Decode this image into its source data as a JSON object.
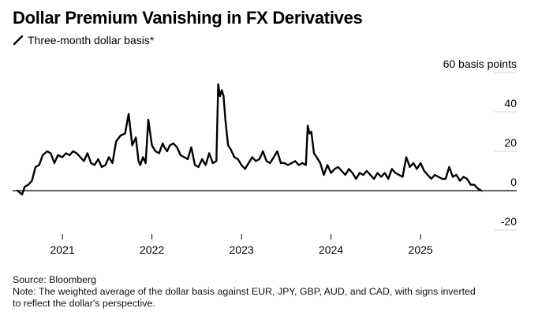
{
  "title": "Dollar Premium Vanishing in FX Derivatives",
  "colors": {
    "line": "#000000",
    "grid": "#d9d9d9",
    "zero": "#000000",
    "background": "#ffffff"
  },
  "footer": {
    "source": "Source: Bloomberg",
    "note_line1": "Note: The weighted average of the dollar basis against EUR, JPY, GBP, AUD, and CAD, with signs inverted",
    "note_line2": "to reflect the dollar's perspective."
  },
  "chart_data": {
    "type": "line",
    "title": "",
    "xlabel": "",
    "ylabel": "60 basis points",
    "unit": "basis points",
    "ylim": [
      -20,
      60
    ],
    "y_ticks": [
      {
        "value": 60,
        "label": "60 basis points"
      },
      {
        "value": 40,
        "label": "40"
      },
      {
        "value": 20,
        "label": "20"
      },
      {
        "value": 0,
        "label": "0"
      },
      {
        "value": -20,
        "label": "-20"
      }
    ],
    "x_ticks": [
      "2021",
      "2022",
      "2023",
      "2024",
      "2025"
    ],
    "xlim": [
      2020.55,
      2025.88
    ],
    "grid": "horizontal",
    "legend": "top-left",
    "series": [
      {
        "name": "Three-month dollar basis*",
        "x": [
          2020.5,
          2020.55,
          2020.58,
          2020.62,
          2020.66,
          2020.7,
          2020.74,
          2020.78,
          2020.83,
          2020.87,
          2020.91,
          2020.95,
          2021.0,
          2021.04,
          2021.08,
          2021.12,
          2021.16,
          2021.2,
          2021.24,
          2021.28,
          2021.32,
          2021.36,
          2021.4,
          2021.44,
          2021.48,
          2021.52,
          2021.56,
          2021.6,
          2021.65,
          2021.7,
          2021.74,
          2021.78,
          2021.82,
          2021.85,
          2021.87,
          2021.9,
          2021.93,
          2021.96,
          2022.0,
          2022.04,
          2022.08,
          2022.12,
          2022.14,
          2022.17,
          2022.2,
          2022.24,
          2022.28,
          2022.32,
          2022.36,
          2022.4,
          2022.44,
          2022.48,
          2022.52,
          2022.56,
          2022.6,
          2022.64,
          2022.68,
          2022.72,
          2022.74,
          2022.76,
          2022.78,
          2022.8,
          2022.82,
          2022.85,
          2022.88,
          2022.92,
          2022.96,
          2023.0,
          2023.04,
          2023.08,
          2023.12,
          2023.16,
          2023.2,
          2023.24,
          2023.28,
          2023.32,
          2023.36,
          2023.4,
          2023.44,
          2023.48,
          2023.52,
          2023.56,
          2023.6,
          2023.64,
          2023.68,
          2023.72,
          2023.74,
          2023.76,
          2023.78,
          2023.81,
          2023.84,
          2023.88,
          2023.92,
          2023.96,
          2024.0,
          2024.04,
          2024.08,
          2024.12,
          2024.16,
          2024.2,
          2024.24,
          2024.28,
          2024.32,
          2024.36,
          2024.4,
          2024.44,
          2024.48,
          2024.52,
          2024.56,
          2024.6,
          2024.64,
          2024.68,
          2024.72,
          2024.76,
          2024.8,
          2024.84,
          2024.88,
          2024.92,
          2024.96,
          2025.0,
          2025.04,
          2025.08,
          2025.12,
          2025.16,
          2025.2,
          2025.24,
          2025.28,
          2025.32,
          2025.36,
          2025.4,
          2025.44,
          2025.48,
          2025.52,
          2025.56,
          2025.6,
          2025.64,
          2025.68
        ],
        "values": [
          0,
          -2,
          2,
          3,
          5,
          12,
          13,
          18,
          20,
          19,
          14,
          18,
          17,
          19,
          18,
          20,
          19,
          17,
          15,
          19,
          14,
          13,
          16,
          12,
          13,
          17,
          14,
          25,
          28,
          29,
          39,
          23,
          27,
          15,
          13,
          17,
          14,
          36,
          23,
          20,
          19,
          24,
          22,
          20,
          23,
          24,
          22,
          18,
          17,
          16,
          22,
          13,
          12,
          16,
          13,
          19,
          14,
          15,
          54,
          48,
          51,
          48,
          36,
          23,
          21,
          17,
          16,
          13,
          11,
          14,
          17,
          15,
          16,
          20,
          15,
          14,
          17,
          20,
          14,
          14,
          13,
          14,
          15,
          13,
          14,
          13,
          33,
          29,
          30,
          19,
          17,
          14,
          8,
          13,
          9,
          11,
          12,
          10,
          8,
          11,
          9,
          6,
          9,
          8,
          10,
          8,
          6,
          9,
          7,
          9,
          6,
          11,
          9,
          8,
          7,
          17,
          12,
          14,
          11,
          14,
          10,
          8,
          6,
          8,
          7,
          6,
          6,
          12,
          7,
          8,
          5,
          7,
          6,
          3,
          3,
          1,
          0
        ]
      }
    ]
  }
}
